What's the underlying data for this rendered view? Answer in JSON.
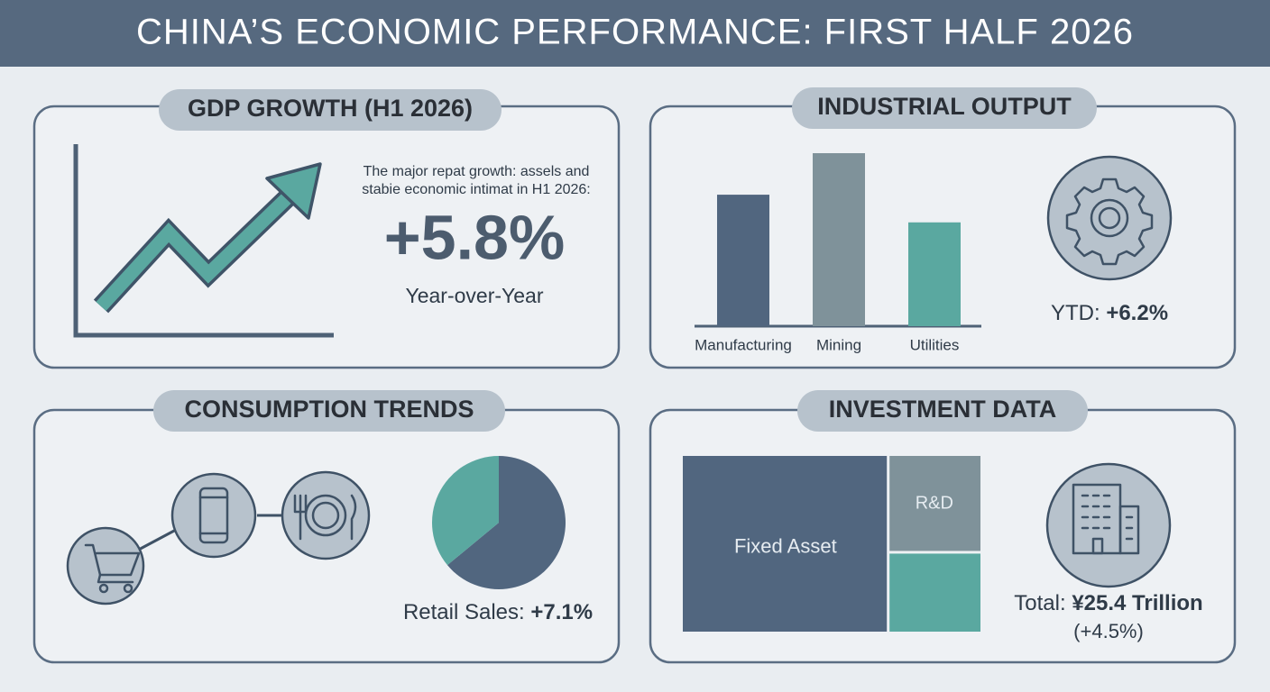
{
  "header": {
    "title": "CHINA’S ECONOMIC PERFORMANCE: FIRST HALF 2026"
  },
  "panels": {
    "gdp": {
      "title": "GDP GROWTH (H1 2026)",
      "description": [
        "The major repat growth: assels and",
        "stabie economic intimat in H1 2026:"
      ],
      "value": "+5.8%",
      "caption": "Year-over-Year"
    },
    "industrial": {
      "title": "INDUSTRIAL OUTPUT",
      "chart": {
        "type": "bar",
        "categories": [
          "Manufacturing",
          "Mining",
          "Utilities"
        ],
        "values": [
          76,
          100,
          60
        ],
        "colors": [
          "#51667f",
          "#7f929a",
          "#5aa8a0"
        ],
        "ylim": [
          0,
          100
        ]
      },
      "ytd_label": "YTD:",
      "ytd_value": "+6.2%"
    },
    "consumption": {
      "title": "CONSUMPTION TRENDS",
      "chart": {
        "type": "pie",
        "values": [
          64,
          36
        ],
        "colors": [
          "#51667f",
          "#5aa8a0"
        ]
      },
      "retail_label": "Retail Sales:",
      "retail_value": "+7.1%"
    },
    "investment": {
      "title": "INVESTMENT DATA",
      "chart": {
        "type": "treemap",
        "categories": [
          "Fixed Asset",
          "R&D",
          null
        ],
        "values": [
          69,
          17,
          14
        ],
        "colors": [
          "#51667f",
          "#7f929a",
          "#5aa8a0"
        ]
      },
      "total_label": "Total:",
      "total_value": "¥25.4 Trillion",
      "change": "(+4.5%)"
    }
  }
}
